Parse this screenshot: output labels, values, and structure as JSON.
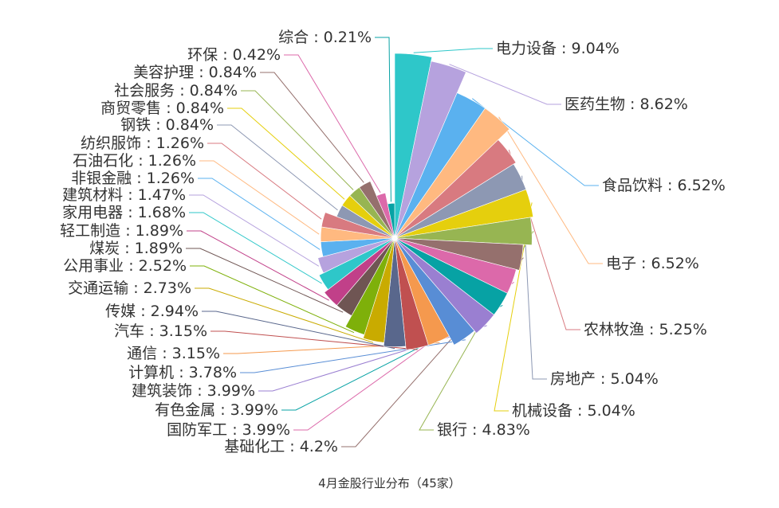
{
  "chart_data": {
    "type": "pie",
    "variant": "rose",
    "title": "4月金股行业分布（45家）",
    "label_separator": " : ",
    "series": [
      {
        "name": "电力设备",
        "percent": "9.04%",
        "value": 9.04,
        "color": "#2ec7c9"
      },
      {
        "name": "医药生物",
        "percent": "8.62%",
        "value": 8.62,
        "color": "#b6a2de"
      },
      {
        "name": "食品饮料",
        "percent": "6.52%",
        "value": 6.52,
        "color": "#5ab1ef"
      },
      {
        "name": "电子",
        "percent": "6.52%",
        "value": 6.52,
        "color": "#ffb980"
      },
      {
        "name": "农林牧渔",
        "percent": "5.25%",
        "value": 5.25,
        "color": "#d87a80"
      },
      {
        "name": "房地产",
        "percent": "5.04%",
        "value": 5.04,
        "color": "#8d98b3"
      },
      {
        "name": "机械设备",
        "percent": "5.04%",
        "value": 5.04,
        "color": "#e5cf0d"
      },
      {
        "name": "银行",
        "percent": "4.83%",
        "value": 4.83,
        "color": "#97b552"
      },
      {
        "name": "基础化工",
        "percent": "4.2%",
        "value": 4.2,
        "color": "#95706d"
      },
      {
        "name": "国防军工",
        "percent": "3.99%",
        "value": 3.99,
        "color": "#dc69aa"
      },
      {
        "name": "有色金属",
        "percent": "3.99%",
        "value": 3.99,
        "color": "#07a2a4"
      },
      {
        "name": "建筑装饰",
        "percent": "3.99%",
        "value": 3.99,
        "color": "#9a7fd1"
      },
      {
        "name": "计算机",
        "percent": "3.78%",
        "value": 3.78,
        "color": "#588dd5"
      },
      {
        "name": "通信",
        "percent": "3.15%",
        "value": 3.15,
        "color": "#f5994e"
      },
      {
        "name": "汽车",
        "percent": "3.15%",
        "value": 3.15,
        "color": "#c05050"
      },
      {
        "name": "传媒",
        "percent": "2.94%",
        "value": 2.94,
        "color": "#59678c"
      },
      {
        "name": "交通运输",
        "percent": "2.73%",
        "value": 2.73,
        "color": "#c9ab00"
      },
      {
        "name": "公用事业",
        "percent": "2.52%",
        "value": 2.52,
        "color": "#7eb00a"
      },
      {
        "name": "煤炭",
        "percent": "1.89%",
        "value": 1.89,
        "color": "#6f5553"
      },
      {
        "name": "轻工制造",
        "percent": "1.89%",
        "value": 1.89,
        "color": "#c14089"
      },
      {
        "name": "家用电器",
        "percent": "1.68%",
        "value": 1.68,
        "color": "#2ec7c9"
      },
      {
        "name": "建筑材料",
        "percent": "1.47%",
        "value": 1.47,
        "color": "#b6a2de"
      },
      {
        "name": "非银金融",
        "percent": "1.26%",
        "value": 1.26,
        "color": "#5ab1ef"
      },
      {
        "name": "石油石化",
        "percent": "1.26%",
        "value": 1.26,
        "color": "#ffb980"
      },
      {
        "name": "纺织服饰",
        "percent": "1.26%",
        "value": 1.26,
        "color": "#d87a80"
      },
      {
        "name": "钢铁",
        "percent": "0.84%",
        "value": 0.84,
        "color": "#8d98b3"
      },
      {
        "name": "商贸零售",
        "percent": "0.84%",
        "value": 0.84,
        "color": "#e5cf0d"
      },
      {
        "name": "社会服务",
        "percent": "0.84%",
        "value": 0.84,
        "color": "#97b552"
      },
      {
        "name": "美容护理",
        "percent": "0.84%",
        "value": 0.84,
        "color": "#95706d"
      },
      {
        "name": "环保",
        "percent": "0.42%",
        "value": 0.42,
        "color": "#dc69aa"
      },
      {
        "name": "综合",
        "percent": "0.21%",
        "value": 0.21,
        "color": "#07a2a4"
      }
    ]
  }
}
